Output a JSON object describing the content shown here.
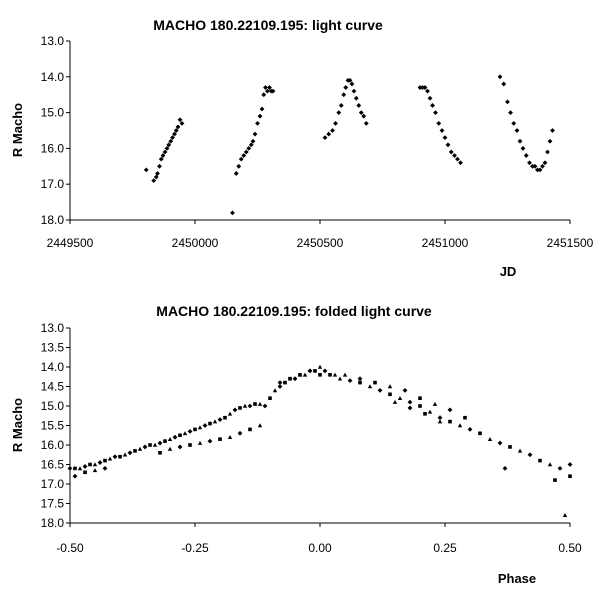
{
  "chart_data": [
    {
      "type": "scatter",
      "title": "MACHO 180.22109.195: light curve",
      "xlabel": "JD",
      "ylabel": "R Macho",
      "xlim": [
        2449500,
        2451500
      ],
      "ylim": [
        13.0,
        18.0
      ],
      "y_inverted": true,
      "xticks": [
        "2449500",
        "2450000",
        "2450500",
        "2451000",
        "2451500"
      ],
      "yticks": [
        "13.0",
        "14.0",
        "15.0",
        "16.0",
        "17.0",
        "18.0"
      ],
      "grid": false,
      "legend": "none",
      "series": [
        {
          "x": [
            2449805,
            2449835,
            2449845,
            2449850,
            2449858,
            2449865,
            2449872,
            2449880,
            2449888,
            2449895,
            2449903,
            2449910,
            2449918,
            2449925,
            2449932,
            2449940,
            2449948,
            2450150,
            2450165,
            2450175,
            2450185,
            2450195,
            2450205,
            2450215,
            2450225,
            2450232,
            2450240,
            2450250,
            2450260,
            2450268,
            2450275,
            2450282,
            2450290,
            2450298,
            2450305,
            2450312,
            2450520,
            2450535,
            2450550,
            2450562,
            2450575,
            2450585,
            2450595,
            2450603,
            2450612,
            2450620,
            2450628,
            2450636,
            2450645,
            2450655,
            2450665,
            2450675,
            2450685,
            2450900,
            2450910,
            2450920,
            2450930,
            2450940,
            2450950,
            2450962,
            2450975,
            2450988,
            2451000,
            2451012,
            2451025,
            2451038,
            2451050,
            2451062,
            2451220,
            2451235,
            2451250,
            2451262,
            2451275,
            2451288,
            2451300,
            2451312,
            2451325,
            2451338,
            2451350,
            2451360,
            2451370,
            2451380,
            2451390,
            2451400,
            2451410,
            2451420,
            2451430
          ],
          "y": [
            16.6,
            16.9,
            16.8,
            16.7,
            16.5,
            16.3,
            16.2,
            16.1,
            16.0,
            15.9,
            15.8,
            15.7,
            15.6,
            15.5,
            15.4,
            15.2,
            15.3,
            17.8,
            16.7,
            16.5,
            16.3,
            16.2,
            16.1,
            16.0,
            15.9,
            15.8,
            15.6,
            15.3,
            15.1,
            14.9,
            14.5,
            14.3,
            14.4,
            14.3,
            14.4,
            14.4,
            15.7,
            15.6,
            15.5,
            15.3,
            15.0,
            14.8,
            14.5,
            14.3,
            14.1,
            14.1,
            14.2,
            14.4,
            14.6,
            14.8,
            15.0,
            15.1,
            15.3,
            14.3,
            14.3,
            14.3,
            14.4,
            14.6,
            14.8,
            15.0,
            15.3,
            15.5,
            15.7,
            15.9,
            16.1,
            16.2,
            16.3,
            16.4,
            14.0,
            14.2,
            14.7,
            15.0,
            15.3,
            15.5,
            15.8,
            16.0,
            16.2,
            16.4,
            16.5,
            16.5,
            16.6,
            16.6,
            16.5,
            16.4,
            16.1,
            15.8,
            15.5
          ]
        }
      ]
    },
    {
      "type": "scatter",
      "title": "MACHO 180.22109.195: folded light curve",
      "xlabel": "Phase",
      "ylabel": "R Macho",
      "xlim": [
        -0.5,
        0.5
      ],
      "ylim": [
        13.0,
        18.0
      ],
      "y_inverted": true,
      "xticks": [
        "-0.50",
        "-0.25",
        "0.00",
        "0.25",
        "0.50"
      ],
      "yticks": [
        "13.0",
        "13.5",
        "14.0",
        "14.5",
        "15.0",
        "15.5",
        "16.0",
        "16.5",
        "17.0",
        "17.5",
        "18.0"
      ],
      "grid": false,
      "legend": "none",
      "series": [
        {
          "x": [
            -0.5,
            -0.49,
            -0.48,
            -0.47,
            -0.46,
            -0.45,
            -0.44,
            -0.43,
            -0.42,
            -0.41,
            -0.4,
            -0.39,
            -0.38,
            -0.37,
            -0.36,
            -0.35,
            -0.34,
            -0.33,
            -0.32,
            -0.31,
            -0.3,
            -0.29,
            -0.28,
            -0.27,
            -0.26,
            -0.25,
            -0.24,
            -0.23,
            -0.22,
            -0.21,
            -0.2,
            -0.19,
            -0.18,
            -0.17,
            -0.16,
            -0.15,
            -0.14,
            -0.13,
            -0.12,
            -0.11,
            -0.32,
            -0.3,
            -0.28,
            -0.26,
            -0.24,
            -0.22,
            -0.2,
            -0.18,
            -0.16,
            -0.14,
            -0.12,
            -0.49,
            -0.47,
            -0.45,
            -0.43,
            -0.1,
            -0.09,
            -0.08,
            -0.07,
            -0.06,
            -0.05,
            -0.04,
            -0.03,
            -0.02,
            -0.01,
            0.0,
            0.01,
            0.02,
            0.03,
            -0.08,
            -0.06,
            -0.04,
            -0.02,
            0.0,
            0.04,
            0.06,
            0.08,
            0.1,
            0.12,
            0.14,
            0.16,
            0.18,
            0.2,
            0.22,
            0.24,
            0.26,
            0.28,
            0.3,
            0.32,
            0.34,
            0.36,
            0.38,
            0.4,
            0.42,
            0.44,
            0.46,
            0.48,
            0.5,
            0.05,
            0.08,
            0.11,
            0.14,
            0.17,
            0.2,
            0.23,
            0.26,
            0.29,
            0.15,
            0.18,
            0.21,
            0.24,
            0.37,
            0.47,
            0.49,
            0.5
          ],
          "y": [
            16.6,
            16.6,
            16.6,
            16.55,
            16.5,
            16.5,
            16.45,
            16.4,
            16.35,
            16.3,
            16.3,
            16.25,
            16.2,
            16.15,
            16.1,
            16.05,
            16.0,
            16.0,
            15.95,
            15.9,
            15.85,
            15.8,
            15.75,
            15.7,
            15.65,
            15.6,
            15.55,
            15.5,
            15.45,
            15.4,
            15.35,
            15.3,
            15.2,
            15.1,
            15.05,
            15.0,
            15.0,
            14.95,
            14.95,
            15.0,
            16.2,
            16.1,
            16.05,
            16.0,
            15.95,
            15.9,
            15.85,
            15.8,
            15.7,
            15.6,
            15.5,
            16.8,
            16.7,
            16.65,
            16.6,
            14.8,
            14.6,
            14.5,
            14.4,
            14.3,
            14.3,
            14.2,
            14.2,
            14.1,
            14.1,
            14.0,
            14.1,
            14.2,
            14.2,
            14.4,
            14.3,
            14.2,
            14.1,
            14.2,
            14.3,
            14.35,
            14.4,
            14.5,
            14.6,
            14.7,
            14.8,
            14.9,
            15.0,
            15.15,
            15.3,
            15.4,
            15.5,
            15.6,
            15.7,
            15.85,
            15.95,
            16.05,
            16.15,
            16.25,
            16.4,
            16.5,
            16.6,
            16.8,
            14.2,
            14.3,
            14.4,
            14.5,
            14.6,
            14.8,
            14.95,
            15.1,
            15.3,
            14.9,
            15.05,
            15.2,
            15.4,
            16.6,
            16.9,
            17.8,
            16.5
          ]
        }
      ]
    }
  ]
}
